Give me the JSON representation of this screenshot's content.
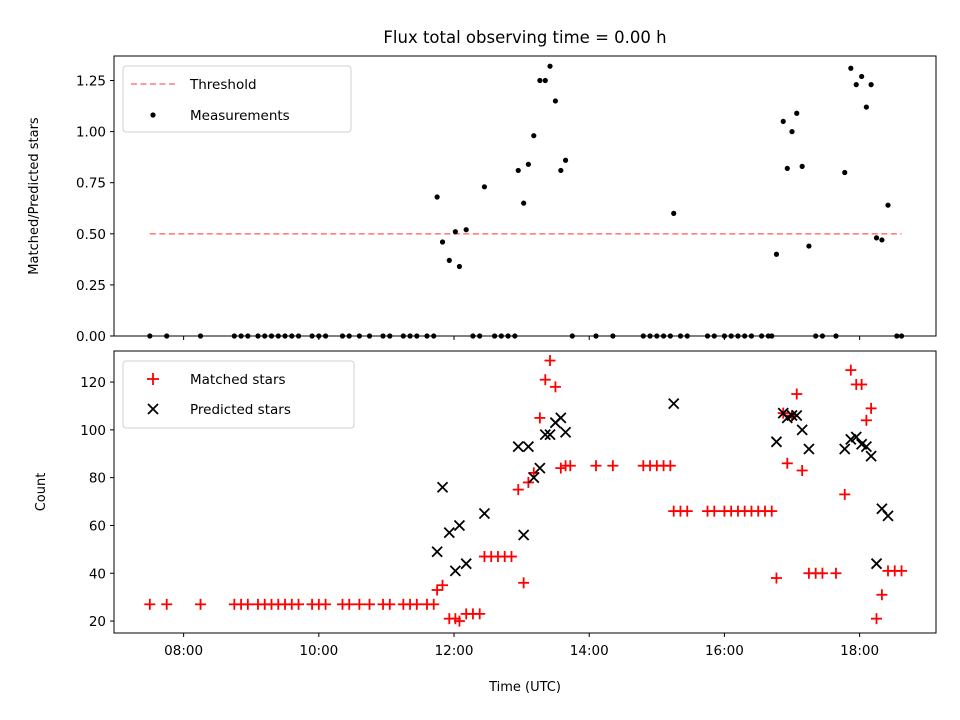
{
  "figure": {
    "title": "Flux total observing time = 0.00 h",
    "xlabel": "Time (UTC)"
  },
  "chart_data": [
    {
      "type": "scatter",
      "ylabel": "Matched/Predicted stars",
      "ylim": [
        0.0,
        1.37
      ],
      "yticks": [
        0.0,
        0.25,
        0.5,
        0.75,
        1.0,
        1.25
      ],
      "ytick_labels": [
        "0.00",
        "0.25",
        "0.50",
        "0.75",
        "1.00",
        "1.25"
      ],
      "xlim": [
        6.97,
        19.13
      ],
      "legend_position": "top-left",
      "series": [
        {
          "name": "Threshold",
          "kind": "dashed-line",
          "color": "#ff7f7f",
          "points": [
            [
              7.5,
              0.5
            ],
            [
              18.62,
              0.5
            ]
          ]
        },
        {
          "name": "Measurements",
          "kind": "dot",
          "color": "#000000",
          "points": [
            [
              7.5,
              0
            ],
            [
              7.75,
              0
            ],
            [
              8.25,
              0
            ],
            [
              8.75,
              0
            ],
            [
              8.85,
              0
            ],
            [
              8.95,
              0
            ],
            [
              9.1,
              0
            ],
            [
              9.2,
              0
            ],
            [
              9.3,
              0
            ],
            [
              9.4,
              0
            ],
            [
              9.5,
              0
            ],
            [
              9.6,
              0
            ],
            [
              9.7,
              0
            ],
            [
              9.9,
              0
            ],
            [
              10.0,
              0
            ],
            [
              10.1,
              0
            ],
            [
              10.35,
              0
            ],
            [
              10.45,
              0
            ],
            [
              10.6,
              0
            ],
            [
              10.75,
              0
            ],
            [
              10.95,
              0
            ],
            [
              11.05,
              0
            ],
            [
              11.25,
              0
            ],
            [
              11.35,
              0
            ],
            [
              11.45,
              0
            ],
            [
              11.6,
              0
            ],
            [
              11.7,
              0
            ],
            [
              11.75,
              0.68
            ],
            [
              11.83,
              0.46
            ],
            [
              11.93,
              0.37
            ],
            [
              12.02,
              0.51
            ],
            [
              12.08,
              0.34
            ],
            [
              12.18,
              0.52
            ],
            [
              12.28,
              0
            ],
            [
              12.38,
              0
            ],
            [
              12.45,
              0.73
            ],
            [
              12.6,
              0
            ],
            [
              12.7,
              0
            ],
            [
              12.8,
              0
            ],
            [
              12.9,
              0
            ],
            [
              12.95,
              0.81
            ],
            [
              13.03,
              0.65
            ],
            [
              13.1,
              0.84
            ],
            [
              13.18,
              0.98
            ],
            [
              13.27,
              1.25
            ],
            [
              13.35,
              1.25
            ],
            [
              13.42,
              1.32
            ],
            [
              13.5,
              1.15
            ],
            [
              13.58,
              0.81
            ],
            [
              13.65,
              0.86
            ],
            [
              13.75,
              0
            ],
            [
              14.1,
              0
            ],
            [
              14.35,
              0
            ],
            [
              14.8,
              0
            ],
            [
              14.9,
              0
            ],
            [
              15.0,
              0
            ],
            [
              15.1,
              0
            ],
            [
              15.2,
              0
            ],
            [
              15.25,
              0.6
            ],
            [
              15.35,
              0
            ],
            [
              15.45,
              0
            ],
            [
              15.75,
              0
            ],
            [
              15.85,
              0
            ],
            [
              16.0,
              0
            ],
            [
              16.1,
              0
            ],
            [
              16.2,
              0
            ],
            [
              16.3,
              0
            ],
            [
              16.4,
              0
            ],
            [
              16.55,
              0
            ],
            [
              16.65,
              0
            ],
            [
              16.7,
              0
            ],
            [
              16.77,
              0.4
            ],
            [
              16.87,
              1.05
            ],
            [
              16.93,
              0.82
            ],
            [
              17.0,
              1.0
            ],
            [
              17.07,
              1.09
            ],
            [
              17.15,
              0.83
            ],
            [
              17.25,
              0.44
            ],
            [
              17.35,
              0
            ],
            [
              17.45,
              0
            ],
            [
              17.65,
              0
            ],
            [
              17.78,
              0.8
            ],
            [
              17.87,
              1.31
            ],
            [
              17.95,
              1.23
            ],
            [
              18.03,
              1.27
            ],
            [
              18.1,
              1.12
            ],
            [
              18.17,
              1.23
            ],
            [
              18.25,
              0.48
            ],
            [
              18.33,
              0.47
            ],
            [
              18.42,
              0.64
            ],
            [
              18.55,
              0
            ],
            [
              18.62,
              0
            ]
          ]
        }
      ]
    },
    {
      "type": "scatter",
      "ylabel": "Count",
      "ylim": [
        15,
        133
      ],
      "yticks": [
        20,
        40,
        60,
        80,
        100,
        120
      ],
      "ytick_labels": [
        "20",
        "40",
        "60",
        "80",
        "100",
        "120"
      ],
      "xlim": [
        6.97,
        19.13
      ],
      "xticks": [
        8,
        10,
        12,
        14,
        16,
        18
      ],
      "xtick_labels": [
        "08:00",
        "10:00",
        "12:00",
        "14:00",
        "16:00",
        "18:00"
      ],
      "legend_position": "top-left",
      "series": [
        {
          "name": "Matched stars",
          "kind": "plus",
          "color": "#ff0000",
          "points": [
            [
              7.5,
              27
            ],
            [
              7.75,
              27
            ],
            [
              8.25,
              27
            ],
            [
              8.75,
              27
            ],
            [
              8.85,
              27
            ],
            [
              8.95,
              27
            ],
            [
              9.1,
              27
            ],
            [
              9.2,
              27
            ],
            [
              9.3,
              27
            ],
            [
              9.4,
              27
            ],
            [
              9.5,
              27
            ],
            [
              9.6,
              27
            ],
            [
              9.7,
              27
            ],
            [
              9.9,
              27
            ],
            [
              10.0,
              27
            ],
            [
              10.1,
              27
            ],
            [
              10.35,
              27
            ],
            [
              10.45,
              27
            ],
            [
              10.6,
              27
            ],
            [
              10.75,
              27
            ],
            [
              10.95,
              27
            ],
            [
              11.05,
              27
            ],
            [
              11.25,
              27
            ],
            [
              11.35,
              27
            ],
            [
              11.45,
              27
            ],
            [
              11.6,
              27
            ],
            [
              11.7,
              27
            ],
            [
              11.75,
              33
            ],
            [
              11.83,
              35
            ],
            [
              11.93,
              21
            ],
            [
              12.02,
              21
            ],
            [
              12.08,
              20
            ],
            [
              12.18,
              23
            ],
            [
              12.28,
              23
            ],
            [
              12.38,
              23
            ],
            [
              12.45,
              47
            ],
            [
              12.55,
              47
            ],
            [
              12.65,
              47
            ],
            [
              12.75,
              47
            ],
            [
              12.85,
              47
            ],
            [
              12.95,
              75
            ],
            [
              13.03,
              36
            ],
            [
              13.1,
              78
            ],
            [
              13.18,
              82
            ],
            [
              13.27,
              105
            ],
            [
              13.35,
              121
            ],
            [
              13.42,
              129
            ],
            [
              13.5,
              118
            ],
            [
              13.58,
              84
            ],
            [
              13.65,
              85
            ],
            [
              13.72,
              85
            ],
            [
              14.1,
              85
            ],
            [
              14.35,
              85
            ],
            [
              14.8,
              85
            ],
            [
              14.9,
              85
            ],
            [
              15.0,
              85
            ],
            [
              15.1,
              85
            ],
            [
              15.2,
              85
            ],
            [
              15.25,
              66
            ],
            [
              15.35,
              66
            ],
            [
              15.45,
              66
            ],
            [
              15.75,
              66
            ],
            [
              15.85,
              66
            ],
            [
              16.0,
              66
            ],
            [
              16.1,
              66
            ],
            [
              16.2,
              66
            ],
            [
              16.3,
              66
            ],
            [
              16.4,
              66
            ],
            [
              16.5,
              66
            ],
            [
              16.6,
              66
            ],
            [
              16.7,
              66
            ],
            [
              16.77,
              38
            ],
            [
              16.87,
              107
            ],
            [
              16.93,
              86
            ],
            [
              17.0,
              106
            ],
            [
              17.07,
              115
            ],
            [
              17.15,
              83
            ],
            [
              17.25,
              40
            ],
            [
              17.35,
              40
            ],
            [
              17.45,
              40
            ],
            [
              17.65,
              40
            ],
            [
              17.78,
              73
            ],
            [
              17.87,
              125
            ],
            [
              17.95,
              119
            ],
            [
              18.03,
              119
            ],
            [
              18.1,
              104
            ],
            [
              18.17,
              109
            ],
            [
              18.25,
              21
            ],
            [
              18.33,
              31
            ],
            [
              18.42,
              41
            ],
            [
              18.52,
              41
            ],
            [
              18.62,
              41
            ]
          ]
        },
        {
          "name": "Predicted stars",
          "kind": "x",
          "color": "#000000",
          "points": [
            [
              11.75,
              49
            ],
            [
              11.83,
              76
            ],
            [
              11.93,
              57
            ],
            [
              12.02,
              41
            ],
            [
              12.08,
              60
            ],
            [
              12.18,
              44
            ],
            [
              12.45,
              65
            ],
            [
              12.95,
              93
            ],
            [
              13.03,
              56
            ],
            [
              13.1,
              93
            ],
            [
              13.18,
              80
            ],
            [
              13.27,
              84
            ],
            [
              13.35,
              98
            ],
            [
              13.42,
              98
            ],
            [
              13.5,
              103
            ],
            [
              13.58,
              105
            ],
            [
              13.65,
              99
            ],
            [
              15.25,
              111
            ],
            [
              16.77,
              95
            ],
            [
              16.87,
              107
            ],
            [
              16.93,
              105
            ],
            [
              17.0,
              106
            ],
            [
              17.07,
              106
            ],
            [
              17.15,
              100
            ],
            [
              17.25,
              92
            ],
            [
              17.78,
              92
            ],
            [
              17.87,
              96
            ],
            [
              17.95,
              97
            ],
            [
              18.03,
              94
            ],
            [
              18.1,
              93
            ],
            [
              18.17,
              89
            ],
            [
              18.25,
              44
            ],
            [
              18.33,
              67
            ],
            [
              18.42,
              64
            ]
          ]
        }
      ]
    }
  ]
}
